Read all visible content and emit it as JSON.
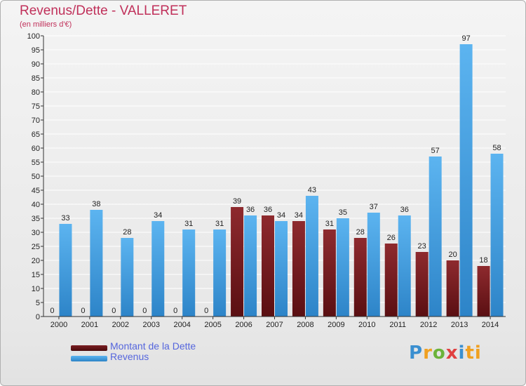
{
  "chart_data": {
    "type": "bar",
    "title": "Revenus/Dette - VALLERET",
    "subtitle": "(en milliers d'€)",
    "xlabel": "",
    "ylabel": "",
    "ylim": [
      0,
      100
    ],
    "ytick_step": 5,
    "categories": [
      "2000",
      "2001",
      "2002",
      "2003",
      "2004",
      "2005",
      "2006",
      "2007",
      "2008",
      "2009",
      "2010",
      "2011",
      "2012",
      "2013",
      "2014"
    ],
    "series": [
      {
        "name": "Montant de la Dette",
        "color": "#7a1e22",
        "values": [
          0,
          0,
          0,
          0,
          0,
          0,
          39,
          36,
          34,
          31,
          28,
          26,
          23,
          20,
          18
        ]
      },
      {
        "name": "Revenus",
        "color": "#4aa3e3",
        "values": [
          33,
          38,
          28,
          34,
          31,
          31,
          36,
          34,
          43,
          35,
          37,
          36,
          57,
          97,
          58
        ]
      }
    ]
  },
  "legend": {
    "dette_label": "Montant de la Dette",
    "revenus_label": "Revenus"
  },
  "logo": {
    "letters": [
      "P",
      "r",
      "o",
      "x",
      "i",
      "ti"
    ]
  }
}
